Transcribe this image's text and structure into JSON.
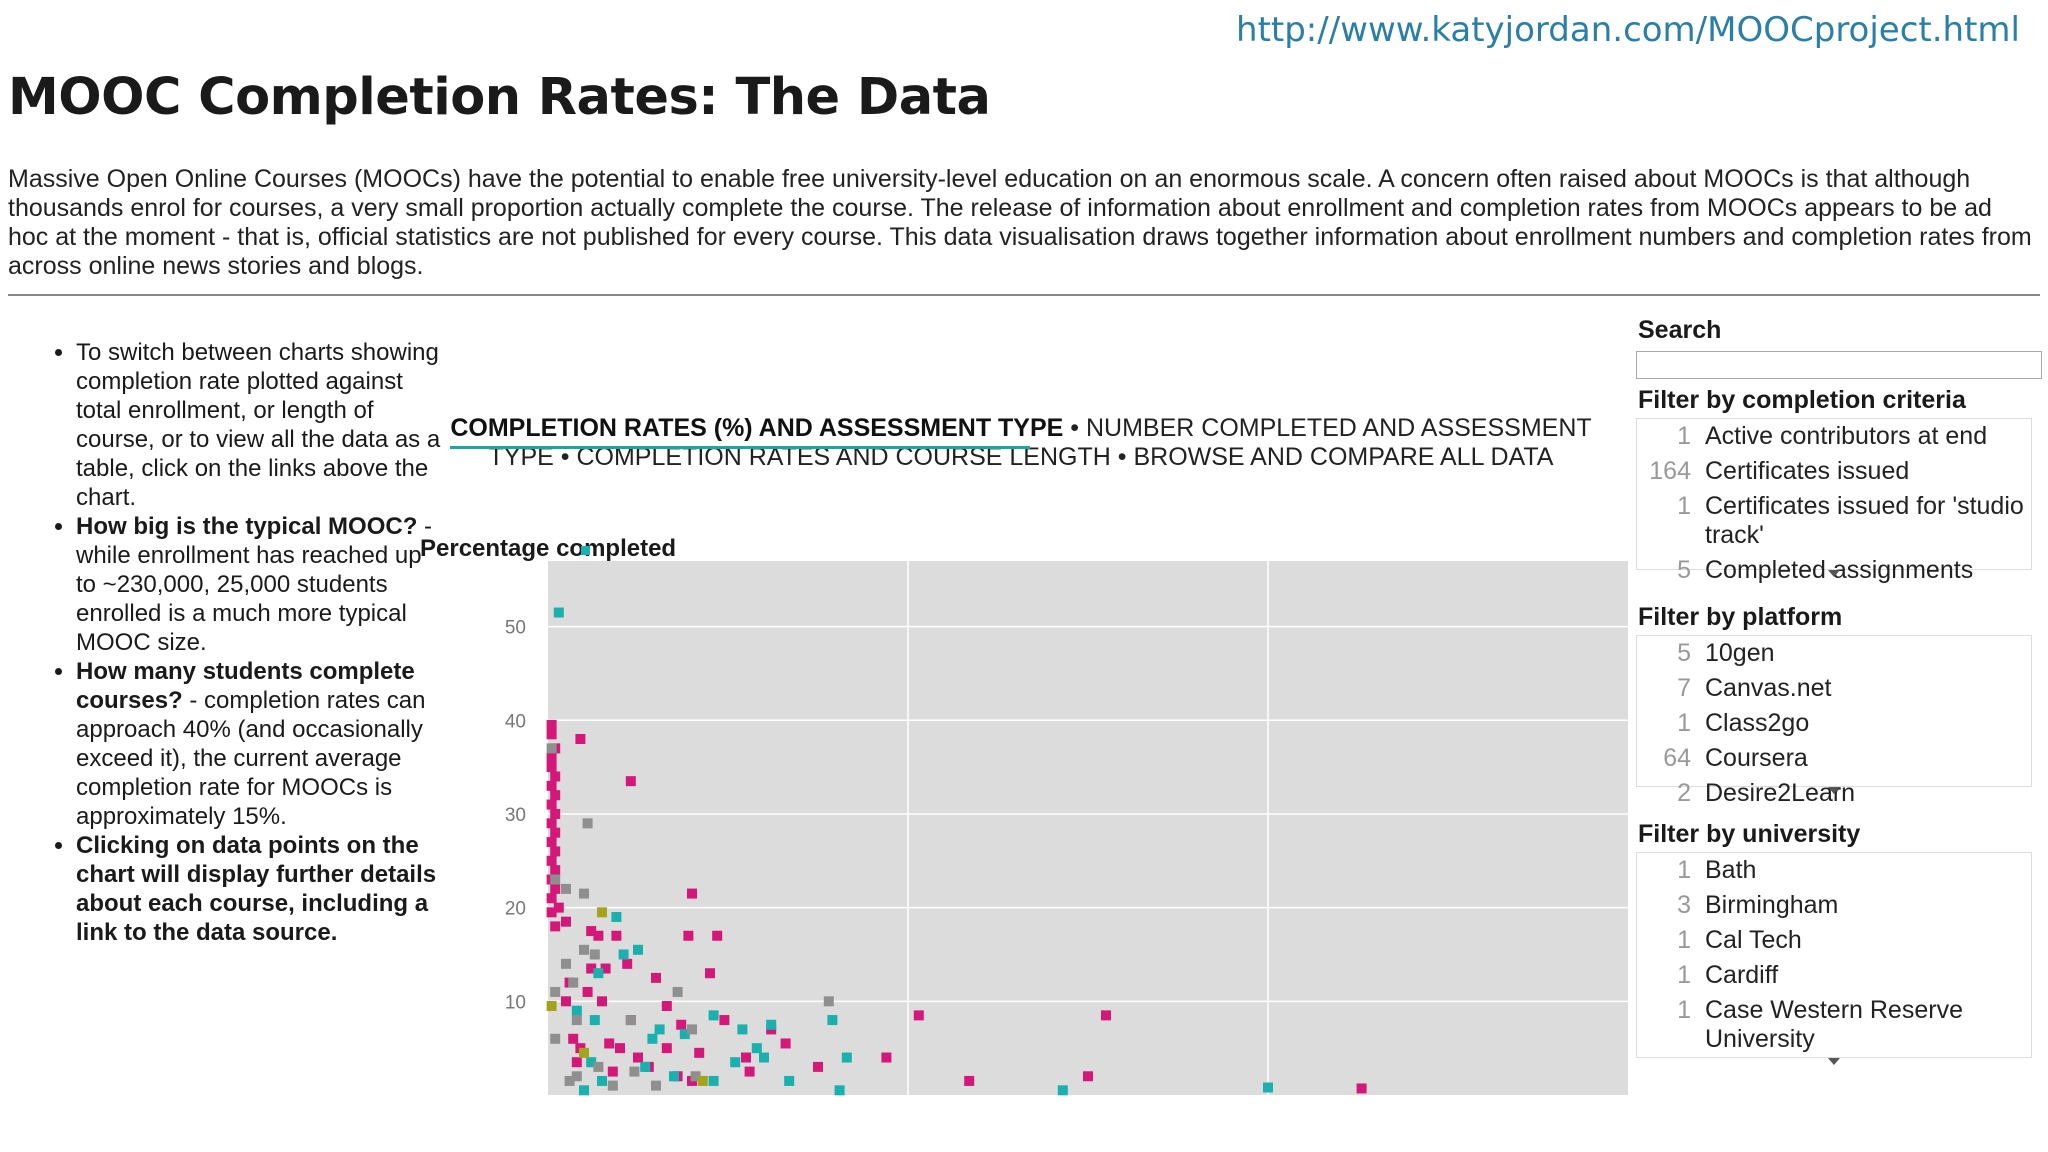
{
  "url": "http://www.katyjordan.com/MOOCproject.html",
  "title": "MOOC Completion Rates: The Data",
  "intro": "Massive Open Online Courses (MOOCs) have the potential to enable free university-level education on an enormous scale. A concern often raised about MOOCs is that although thousands enrol for courses, a very small proportion actually complete the course. The release of information about enrollment and completion rates from MOOCs appears to be ad hoc at the moment - that is, official statistics are not published for every course. This data visualisation draws together information about enrollment numbers and completion rates from across online news stories and blogs.",
  "bullets": {
    "b1": "To switch between charts showing completion rate plotted against total enrollment, or length of course, or to view all the data as a table, click on the links above the chart.",
    "b2_bold": "How big is the typical MOOC?",
    "b2_text": " - while enrollment has reached up to ~230,000, 25,000 students enrolled is a much more typical MOOC size.",
    "b3_bold": "How many students complete courses?",
    "b3_text": " - completion rates can approach 40% (and occasionally exceed it), the current average completion rate for MOOCs is approximately 15%.",
    "b4_bold": "Clicking on data points on the chart will display further details about each course, including a link to the data source."
  },
  "tabs": {
    "active": "COMPLETION RATES (%) AND ASSESSMENT TYPE",
    "tab2": "NUMBER COMPLETED AND ASSESSMENT TYPE",
    "tab3": "COMPLETION RATES AND COURSE LENGTH",
    "tab4": "BROWSE AND COMPARE ALL DATA",
    "separator": " • "
  },
  "sidebar": {
    "search_label": "Search",
    "search_value": "",
    "criteria": {
      "heading": "Filter by completion criteria",
      "items": [
        {
          "count": "1",
          "label": "Active contributors at end"
        },
        {
          "count": "164",
          "label": "Certificates issued"
        },
        {
          "count": "1",
          "label": "Certificates issued for 'studio track'"
        },
        {
          "count": "5",
          "label": "Completed assignments"
        }
      ]
    },
    "platform": {
      "heading": "Filter by platform",
      "items": [
        {
          "count": "5",
          "label": "10gen"
        },
        {
          "count": "7",
          "label": "Canvas.net"
        },
        {
          "count": "1",
          "label": "Class2go"
        },
        {
          "count": "64",
          "label": "Coursera"
        },
        {
          "count": "2",
          "label": "Desire2Learn"
        }
      ]
    },
    "university": {
      "heading": "Filter by university",
      "items": [
        {
          "count": "1",
          "label": "Bath"
        },
        {
          "count": "3",
          "label": "Birmingham"
        },
        {
          "count": "1",
          "label": "Cal Tech"
        },
        {
          "count": "1",
          "label": "Cardiff"
        },
        {
          "count": "1",
          "label": "Case Western Reserve University"
        }
      ]
    }
  },
  "chart_data": {
    "type": "scatter",
    "title": "COMPLETION RATES (%) AND ASSESSMENT TYPE",
    "ylabel": "Percentage completed",
    "xlabel": "",
    "ylim": [
      0,
      57
    ],
    "yticks": [
      10,
      20,
      30,
      40,
      50
    ],
    "xlim": [
      0,
      3
    ],
    "grid": true,
    "colors": {
      "magenta": "#d4187a",
      "teal": "#1ab0ad",
      "gray": "#8f8f8f",
      "olive": "#a3a31c",
      "background": "#dcdcdc",
      "grid": "#ffffff"
    },
    "series": [
      {
        "color": "magenta",
        "points": [
          [
            0.01,
            39.5
          ],
          [
            0.01,
            38.5
          ],
          [
            0.02,
            37
          ],
          [
            0.01,
            36
          ],
          [
            0.01,
            35
          ],
          [
            0.02,
            34
          ],
          [
            0.01,
            33
          ],
          [
            0.02,
            32
          ],
          [
            0.01,
            31
          ],
          [
            0.02,
            30
          ],
          [
            0.01,
            29
          ],
          [
            0.02,
            28
          ],
          [
            0.01,
            27
          ],
          [
            0.02,
            26
          ],
          [
            0.01,
            25
          ],
          [
            0.02,
            24
          ],
          [
            0.01,
            23
          ],
          [
            0.02,
            22
          ],
          [
            0.01,
            21
          ],
          [
            0.03,
            20
          ],
          [
            0.01,
            19.5
          ],
          [
            0.02,
            18
          ],
          [
            0.05,
            18.5
          ],
          [
            0.09,
            38
          ],
          [
            0.23,
            33.5
          ],
          [
            0.4,
            21.5
          ],
          [
            0.39,
            17
          ],
          [
            0.12,
            17.5
          ],
          [
            0.14,
            17
          ],
          [
            0.19,
            17
          ],
          [
            0.47,
            17
          ],
          [
            0.12,
            13.5
          ],
          [
            0.16,
            13.5
          ],
          [
            0.22,
            14
          ],
          [
            0.3,
            12.5
          ],
          [
            0.06,
            12
          ],
          [
            0.11,
            11
          ],
          [
            0.05,
            10
          ],
          [
            0.15,
            10
          ],
          [
            0.33,
            9.5
          ],
          [
            0.45,
            13
          ],
          [
            0.23,
            8
          ],
          [
            0.37,
            7.5
          ],
          [
            0.49,
            8
          ],
          [
            0.62,
            7
          ],
          [
            1.03,
            8.5
          ],
          [
            1.55,
            8.5
          ],
          [
            0.07,
            6
          ],
          [
            0.09,
            5
          ],
          [
            0.17,
            5.5
          ],
          [
            0.2,
            5
          ],
          [
            0.25,
            4
          ],
          [
            0.33,
            5
          ],
          [
            0.42,
            4.5
          ],
          [
            0.55,
            4
          ],
          [
            0.66,
            5.5
          ],
          [
            0.08,
            3.5
          ],
          [
            0.18,
            2.5
          ],
          [
            0.28,
            3
          ],
          [
            0.36,
            2
          ],
          [
            0.56,
            2.5
          ],
          [
            0.75,
            3
          ],
          [
            0.94,
            4
          ],
          [
            1.17,
            1.5
          ],
          [
            1.5,
            2
          ],
          [
            2.26,
            0.7
          ],
          [
            0.4,
            1.5
          ]
        ]
      },
      {
        "color": "teal",
        "points": [
          [
            0.03,
            51.5
          ],
          [
            0.19,
            19
          ],
          [
            0.21,
            15
          ],
          [
            0.25,
            15.5
          ],
          [
            0.14,
            13
          ],
          [
            0.08,
            9
          ],
          [
            0.13,
            8
          ],
          [
            0.31,
            7
          ],
          [
            0.46,
            8.5
          ],
          [
            0.54,
            7
          ],
          [
            0.62,
            7.5
          ],
          [
            0.79,
            8
          ],
          [
            0.83,
            4
          ],
          [
            0.29,
            6
          ],
          [
            0.38,
            6.5
          ],
          [
            0.58,
            5
          ],
          [
            0.12,
            3.5
          ],
          [
            0.27,
            3
          ],
          [
            0.52,
            3.5
          ],
          [
            0.6,
            4
          ],
          [
            0.15,
            1.5
          ],
          [
            0.35,
            2
          ],
          [
            0.46,
            1.5
          ],
          [
            0.67,
            1.5
          ],
          [
            0.81,
            0.5
          ],
          [
            1.43,
            0.5
          ],
          [
            2.0,
            0.8
          ],
          [
            0.1,
            0.5
          ]
        ]
      },
      {
        "color": "gray",
        "points": [
          [
            0.01,
            37
          ],
          [
            0.11,
            29
          ],
          [
            0.02,
            23
          ],
          [
            0.05,
            22
          ],
          [
            0.1,
            21.5
          ],
          [
            0.13,
            15
          ],
          [
            0.05,
            14
          ],
          [
            0.1,
            15.5
          ],
          [
            0.07,
            12
          ],
          [
            0.02,
            11
          ],
          [
            0.36,
            11
          ],
          [
            0.08,
            8
          ],
          [
            0.23,
            8
          ],
          [
            0.4,
            7
          ],
          [
            0.02,
            6
          ],
          [
            0.08,
            2
          ],
          [
            0.14,
            3
          ],
          [
            0.24,
            2.5
          ],
          [
            0.78,
            10
          ],
          [
            0.06,
            1.5
          ],
          [
            0.3,
            1
          ],
          [
            0.18,
            1
          ],
          [
            0.41,
            2
          ]
        ]
      },
      {
        "color": "olive",
        "points": [
          [
            0.15,
            19.5
          ],
          [
            0.01,
            9.5
          ],
          [
            0.43,
            1.5
          ],
          [
            0.1,
            4.5
          ]
        ]
      }
    ]
  }
}
